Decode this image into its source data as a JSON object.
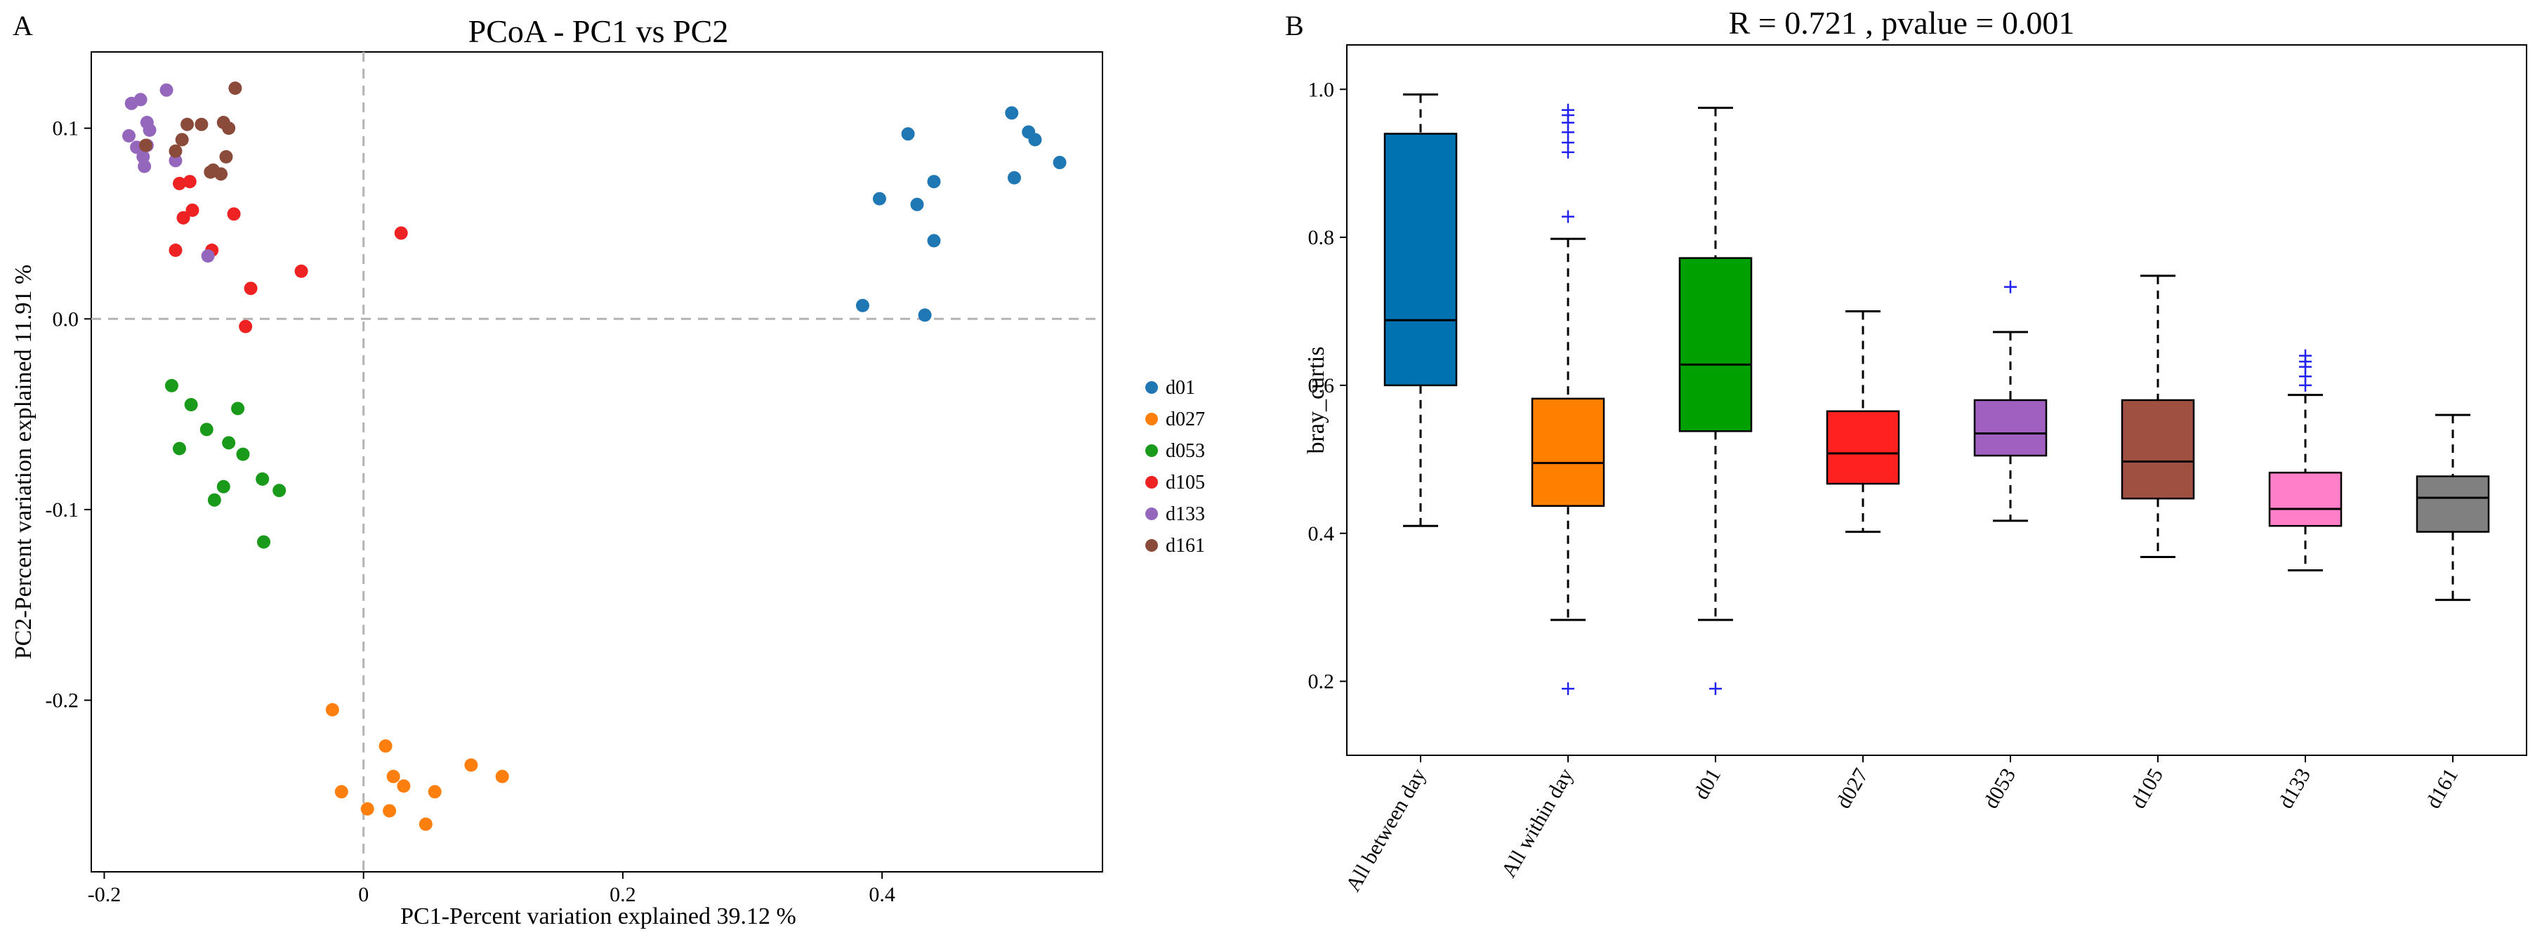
{
  "chart_data": [
    {
      "panel": "A",
      "type": "scatter",
      "title": "PCoA - PC1 vs PC2",
      "xlabel": "PC1-Percent variation explained 39.12 %",
      "ylabel": "PC2-Percent variation explained 11.91 %",
      "xlim": [
        -0.21,
        0.57
      ],
      "ylim": [
        -0.29,
        0.14
      ],
      "x_ticks": [
        -0.2,
        0,
        0.2,
        0.4
      ],
      "y_ticks": [
        -0.2,
        -0.1,
        0,
        0.1
      ],
      "x_tick_labels": [
        "-0.2",
        "0",
        "0.2",
        "0.4"
      ],
      "y_tick_labels": [
        "-0.2",
        "-0.1",
        "0.0",
        "0.1"
      ],
      "grid": false,
      "zero_lines": true,
      "legend_position": "right",
      "series": [
        {
          "name": "d01",
          "color": "#1f77b4",
          "points": [
            [
              0.385,
              0.007
            ],
            [
              0.398,
              0.063
            ],
            [
              0.42,
              0.097
            ],
            [
              0.427,
              0.06
            ],
            [
              0.433,
              0.002
            ],
            [
              0.44,
              0.072
            ],
            [
              0.44,
              0.041
            ],
            [
              0.5,
              0.108
            ],
            [
              0.502,
              0.074
            ],
            [
              0.513,
              0.098
            ],
            [
              0.518,
              0.094
            ],
            [
              0.537,
              0.082
            ]
          ]
        },
        {
          "name": "d027",
          "color": "#ff7f0e",
          "points": [
            [
              -0.024,
              -0.205
            ],
            [
              -0.017,
              -0.248
            ],
            [
              0.003,
              -0.257
            ],
            [
              0.017,
              -0.224
            ],
            [
              0.02,
              -0.258
            ],
            [
              0.023,
              -0.24
            ],
            [
              0.031,
              -0.245
            ],
            [
              0.048,
              -0.265
            ],
            [
              0.055,
              -0.248
            ],
            [
              0.083,
              -0.234
            ],
            [
              0.107,
              -0.24
            ]
          ]
        },
        {
          "name": "d053",
          "color": "#1a9a1a",
          "points": [
            [
              -0.148,
              -0.035
            ],
            [
              -0.142,
              -0.068
            ],
            [
              -0.133,
              -0.045
            ],
            [
              -0.121,
              -0.058
            ],
            [
              -0.115,
              -0.095
            ],
            [
              -0.108,
              -0.088
            ],
            [
              -0.104,
              -0.065
            ],
            [
              -0.097,
              -0.047
            ],
            [
              -0.093,
              -0.071
            ],
            [
              -0.078,
              -0.084
            ],
            [
              -0.077,
              -0.117
            ],
            [
              -0.065,
              -0.09
            ]
          ]
        },
        {
          "name": "d105",
          "color": "#ee2222",
          "points": [
            [
              -0.145,
              0.036
            ],
            [
              -0.142,
              0.071
            ],
            [
              -0.139,
              0.053
            ],
            [
              -0.134,
              0.072
            ],
            [
              -0.132,
              0.057
            ],
            [
              -0.117,
              0.036
            ],
            [
              -0.1,
              0.055
            ],
            [
              -0.091,
              -0.004
            ],
            [
              -0.087,
              0.016
            ],
            [
              -0.048,
              0.025
            ],
            [
              0.029,
              0.045
            ]
          ]
        },
        {
          "name": "d133",
          "color": "#9467bd",
          "points": [
            [
              -0.181,
              0.096
            ],
            [
              -0.179,
              0.113
            ],
            [
              -0.175,
              0.09
            ],
            [
              -0.172,
              0.115
            ],
            [
              -0.17,
              0.085
            ],
            [
              -0.169,
              0.08
            ],
            [
              -0.167,
              0.091
            ],
            [
              -0.167,
              0.103
            ],
            [
              -0.165,
              0.099
            ],
            [
              -0.152,
              0.12
            ],
            [
              -0.145,
              0.083
            ],
            [
              -0.12,
              0.033
            ]
          ]
        },
        {
          "name": "d161",
          "color": "#8b4b3b",
          "points": [
            [
              -0.168,
              0.091
            ],
            [
              -0.145,
              0.088
            ],
            [
              -0.14,
              0.094
            ],
            [
              -0.136,
              0.102
            ],
            [
              -0.125,
              0.102
            ],
            [
              -0.118,
              0.077
            ],
            [
              -0.116,
              0.078
            ],
            [
              -0.11,
              0.076
            ],
            [
              -0.108,
              0.103
            ],
            [
              -0.106,
              0.085
            ],
            [
              -0.104,
              0.1
            ],
            [
              -0.099,
              0.121
            ]
          ]
        }
      ]
    },
    {
      "panel": "B",
      "type": "box",
      "title": "R = 0.721 , pvalue = 0.001",
      "xlabel": "",
      "ylabel": "bray_curtis",
      "ylim": [
        0.1,
        1.06
      ],
      "y_ticks": [
        0.2,
        0.4,
        0.6,
        0.8,
        1.0
      ],
      "y_tick_labels": [
        "0.2",
        "0.4",
        "0.6",
        "0.8",
        "1.0"
      ],
      "grid": false,
      "categories": [
        "All between day",
        "All within day",
        "d01",
        "d027",
        "d053",
        "d105",
        "d133",
        "d161"
      ],
      "colors": [
        "#0072b2",
        "#ff8000",
        "#00a000",
        "#ff2020",
        "#a060c0",
        "#a05040",
        "#ff80c8",
        "#808080"
      ],
      "boxes": [
        {
          "whisker_low": 0.41,
          "q1": 0.6,
          "median": 0.688,
          "q3": 0.94,
          "whisker_high": 0.993,
          "outliers": []
        },
        {
          "whisker_low": 0.283,
          "q1": 0.437,
          "median": 0.495,
          "q3": 0.582,
          "whisker_high": 0.798,
          "outliers": [
            0.19,
            0.828,
            0.915,
            0.928,
            0.942,
            0.955,
            0.965,
            0.972
          ]
        },
        {
          "whisker_low": 0.283,
          "q1": 0.538,
          "median": 0.628,
          "q3": 0.772,
          "whisker_high": 0.975,
          "outliers": [
            0.19
          ]
        },
        {
          "whisker_low": 0.402,
          "q1": 0.467,
          "median": 0.508,
          "q3": 0.565,
          "whisker_high": 0.7,
          "outliers": []
        },
        {
          "whisker_low": 0.417,
          "q1": 0.505,
          "median": 0.535,
          "q3": 0.58,
          "whisker_high": 0.672,
          "outliers": [
            0.733
          ]
        },
        {
          "whisker_low": 0.368,
          "q1": 0.447,
          "median": 0.497,
          "q3": 0.58,
          "whisker_high": 0.748,
          "outliers": []
        },
        {
          "whisker_low": 0.35,
          "q1": 0.41,
          "median": 0.433,
          "q3": 0.482,
          "whisker_high": 0.587,
          "outliers": [
            0.6,
            0.612,
            0.625,
            0.632,
            0.64
          ]
        },
        {
          "whisker_low": 0.31,
          "q1": 0.402,
          "median": 0.448,
          "q3": 0.477,
          "whisker_high": 0.56,
          "outliers": []
        }
      ]
    }
  ]
}
